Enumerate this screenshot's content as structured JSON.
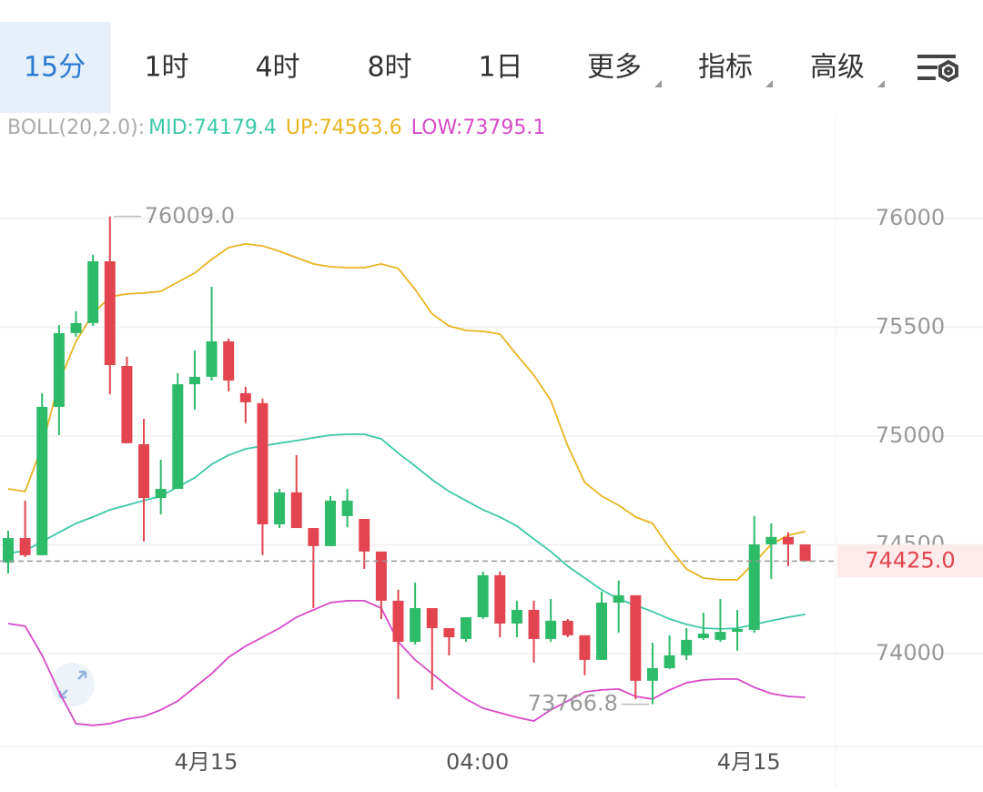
{
  "tabs": [
    {
      "label": "15分",
      "selected": true
    },
    {
      "label": "1时"
    },
    {
      "label": "4时"
    },
    {
      "label": "8时"
    },
    {
      "label": "1日"
    },
    {
      "label": "更多",
      "dropdown": true
    },
    {
      "label": "指标",
      "dropdown": true
    },
    {
      "label": "高级",
      "dropdown": true
    }
  ],
  "chart_data": {
    "type": "candlestick",
    "indicator": "BOLL(20,2.0):",
    "categories": [
      null,
      null,
      null,
      null,
      null,
      null,
      null,
      null,
      null,
      null,
      null,
      null,
      "4月15",
      null,
      null,
      null,
      null,
      null,
      null,
      null,
      null,
      null,
      null,
      null,
      null,
      null,
      null,
      null,
      "04:00",
      null,
      null,
      null,
      null,
      null,
      null,
      null,
      null,
      null,
      null,
      null,
      null,
      null,
      null,
      null,
      "4月15",
      null,
      null,
      null
    ],
    "open": [
      74418,
      74531,
      74452,
      75134,
      75473,
      75519,
      75803,
      75322,
      74962,
      74715,
      74757,
      75238,
      75272,
      75435,
      75197,
      75151,
      74594,
      74741,
      74577,
      74494,
      74632,
      74619,
      74469,
      74243,
      74054,
      74209,
      74117,
      74067,
      74167,
      74360,
      74138,
      74201,
      74067,
      74151,
      74084,
      73971,
      74234,
      74268,
      73875,
      73933,
      73992,
      74071,
      74063,
      74100,
      74109,
      74502,
      74536,
      74502
    ],
    "high": [
      74565,
      74703,
      75197,
      75510,
      75573,
      75833,
      76009,
      75364,
      75079,
      74891,
      75289,
      75393,
      75686,
      75448,
      75226,
      75172,
      74757,
      74912,
      74577,
      74724,
      74757,
      74619,
      74469,
      74293,
      74326,
      74209,
      74117,
      74167,
      74377,
      74377,
      74243,
      74243,
      74251,
      74159,
      74084,
      74285,
      74335,
      74268,
      74050,
      74084,
      74117,
      74188,
      74251,
      74201,
      74632,
      74598,
      74557,
      74502
    ],
    "low": [
      74368,
      74444,
      74452,
      75004,
      75456,
      75506,
      75192,
      74967,
      74515,
      74640,
      74757,
      75121,
      75255,
      75205,
      75059,
      74452,
      74577,
      74577,
      74209,
      74494,
      74580,
      74389,
      74159,
      73791,
      74042,
      73833,
      73992,
      74054,
      74159,
      74075,
      74075,
      73958,
      74054,
      74075,
      73900,
      73971,
      74096,
      73791,
      73766.8,
      73929,
      73971,
      74063,
      74054,
      74013,
      74096,
      74343,
      74402,
      74425
    ],
    "close": [
      74531,
      74452,
      75134,
      75473,
      75519,
      75803,
      75326,
      74967,
      74715,
      74757,
      75238,
      75272,
      75435,
      75255,
      75155,
      74594,
      74741,
      74577,
      74494,
      74703,
      74703,
      74469,
      74243,
      74054,
      74209,
      74117,
      74075,
      74167,
      74360,
      74138,
      74201,
      74067,
      74151,
      74084,
      73971,
      74234,
      74268,
      73875,
      73933,
      73992,
      74063,
      74092,
      74100,
      74113,
      74502,
      74536,
      74502,
      74425
    ],
    "up_color": "#2dbb6a",
    "down_color": "#e2454f",
    "series": [
      {
        "name": "MID:74179.4",
        "color": "#3cc8a8",
        "values": [
          74460,
          74473,
          74515,
          74557,
          74598,
          74628,
          74661,
          74682,
          74703,
          74724,
          74766,
          74808,
          74870,
          74912,
          74941,
          74954,
          74967,
          74979,
          74992,
          75004,
          75008,
          75008,
          74987,
          74921,
          74862,
          74799,
          74745,
          74703,
          74661,
          74628,
          74586,
          74527,
          74469,
          74402,
          74347,
          74293,
          74251,
          74222,
          74193,
          74159,
          74134,
          74117,
          74113,
          74117,
          74134,
          74151,
          74167,
          74180
        ]
      },
      {
        "name": "UP:74563.6",
        "color": "#e8b420",
        "values": [
          74757,
          74745,
          74954,
          75247,
          75435,
          75561,
          75640,
          75653,
          75657,
          75665,
          75707,
          75749,
          75812,
          75866,
          75883,
          75874,
          75849,
          75820,
          75791,
          75778,
          75774,
          75774,
          75791,
          75770,
          75674,
          75561,
          75506,
          75485,
          75481,
          75469,
          75372,
          75280,
          75163,
          74954,
          74787,
          74724,
          74682,
          74628,
          74598,
          74485,
          74389,
          74347,
          74339,
          74339,
          74418,
          74502,
          74544,
          74561
        ]
      },
      {
        "name": "LOW:73795.1",
        "color": "#d84ac8",
        "values": [
          74138,
          74126,
          73992,
          73824,
          73678,
          73670,
          73678,
          73699,
          73711,
          73741,
          73782,
          73845,
          73908,
          73983,
          74034,
          74075,
          74117,
          74167,
          74201,
          74234,
          74243,
          74243,
          74209,
          74054,
          73971,
          73908,
          73845,
          73791,
          73749,
          73728,
          73707,
          73690,
          73741,
          73782,
          73824,
          73833,
          73837,
          73803,
          73791,
          73833,
          73866,
          73879,
          73883,
          73883,
          73845,
          73816,
          73803,
          73799
        ]
      }
    ],
    "ylim": [
      73573,
      76481
    ],
    "yticks": [
      74000,
      74500,
      75000,
      75500,
      76000
    ],
    "grid": true,
    "last_price": {
      "value": 74425,
      "label": "74425.0"
    },
    "max_label": {
      "value": 76009,
      "label": "76009.0"
    },
    "min_label": {
      "value": 73766.8,
      "label": "73766.8"
    }
  }
}
